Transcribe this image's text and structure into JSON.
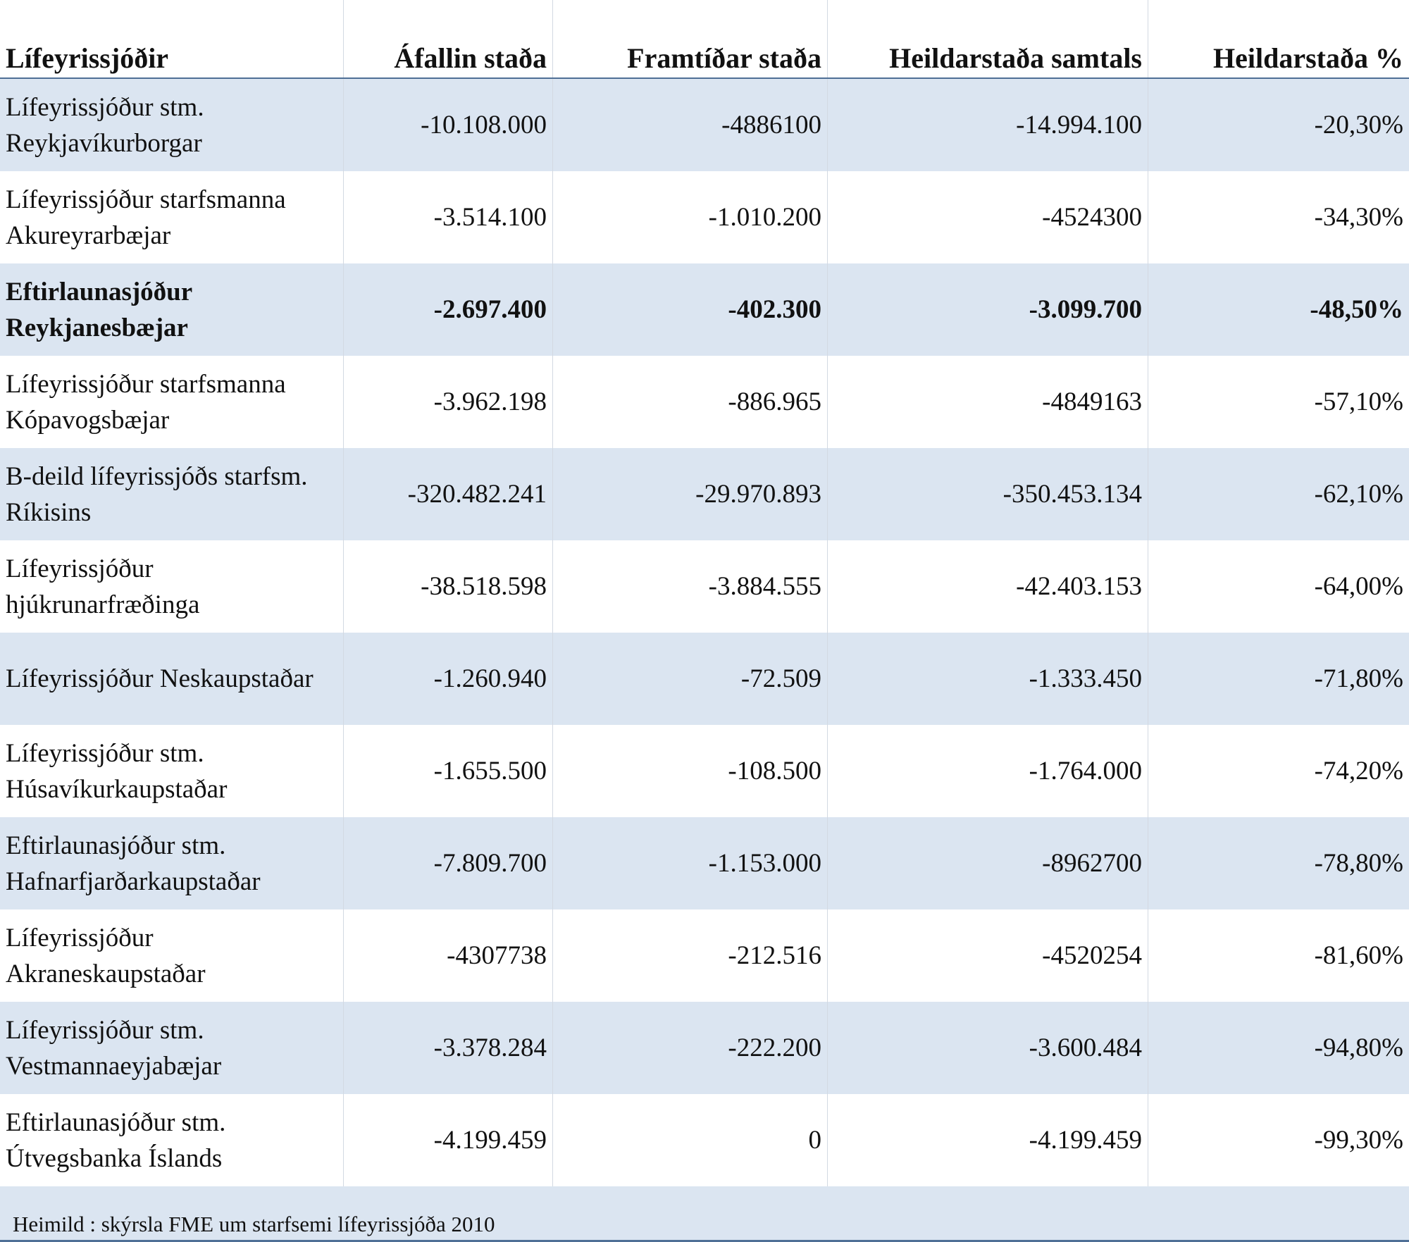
{
  "table": {
    "headers": [
      "Lífeyrissjóðir",
      "Áfallin staða",
      "Framtíðar staða",
      "Heildarstaða samtals",
      "Heildarstaða %"
    ],
    "rows": [
      {
        "name_line1": "Lífeyrissjóður stm.",
        "name_line2": "Reykjavíkurborgar",
        "afallin": "-10.108.000",
        "framtidar": "-4886100",
        "samtals": "-14.994.100",
        "pct": "-20,30%",
        "shaded": true,
        "bold": false
      },
      {
        "name_line1": "Lífeyrissjóður starfsmanna",
        "name_line2": "Akureyrarbæjar",
        "afallin": "-3.514.100",
        "framtidar": "-1.010.200",
        "samtals": "-4524300",
        "pct": "-34,30%",
        "shaded": false,
        "bold": false
      },
      {
        "name_line1": "Eftirlaunasjóður",
        "name_line2": "Reykjanesbæjar",
        "afallin": "-2.697.400",
        "framtidar": "-402.300",
        "samtals": "-3.099.700",
        "pct": "-48,50%",
        "shaded": true,
        "bold": true
      },
      {
        "name_line1": "Lífeyrissjóður starfsmanna",
        "name_line2": "Kópavogsbæjar",
        "afallin": "-3.962.198",
        "framtidar": "-886.965",
        "samtals": "-4849163",
        "pct": "-57,10%",
        "shaded": false,
        "bold": false
      },
      {
        "name_line1": "B-deild lífeyrissjóðs starfsm.",
        "name_line2": "Ríkisins",
        "afallin": "-320.482.241",
        "framtidar": "-29.970.893",
        "samtals": "-350.453.134",
        "pct": "-62,10%",
        "shaded": true,
        "bold": false
      },
      {
        "name_line1": "Lífeyrissjóður",
        "name_line2": "hjúkrunarfræðinga",
        "afallin": "-38.518.598",
        "framtidar": "-3.884.555",
        "samtals": "-42.403.153",
        "pct": "-64,00%",
        "shaded": false,
        "bold": false
      },
      {
        "name_line1": "Lífeyrissjóður Neskaupstaðar",
        "name_line2": "",
        "afallin": "-1.260.940",
        "framtidar": "-72.509",
        "samtals": "-1.333.450",
        "pct": "-71,80%",
        "shaded": true,
        "bold": false
      },
      {
        "name_line1": "Lífeyrissjóður stm.",
        "name_line2": "Húsavíkurkaupstaðar",
        "afallin": "-1.655.500",
        "framtidar": "-108.500",
        "samtals": "-1.764.000",
        "pct": "-74,20%",
        "shaded": false,
        "bold": false
      },
      {
        "name_line1": "Eftirlaunasjóður stm.",
        "name_line2": "Hafnarfjarðarkaupstaðar",
        "afallin": "-7.809.700",
        "framtidar": "-1.153.000",
        "samtals": "-8962700",
        "pct": "-78,80%",
        "shaded": true,
        "bold": false
      },
      {
        "name_line1": "Lífeyrissjóður",
        "name_line2": "Akraneskaupstaðar",
        "afallin": "-4307738",
        "framtidar": "-212.516",
        "samtals": "-4520254",
        "pct": "-81,60%",
        "shaded": false,
        "bold": false
      },
      {
        "name_line1": "Lífeyrissjóður stm.",
        "name_line2": "Vestmannaeyjabæjar",
        "afallin": "-3.378.284",
        "framtidar": "-222.200",
        "samtals": "-3.600.484",
        "pct": "-94,80%",
        "shaded": true,
        "bold": false
      },
      {
        "name_line1": "Eftirlaunasjóður stm.",
        "name_line2": "Útvegsbanka Íslands",
        "afallin": "-4.199.459",
        "framtidar": "0",
        "samtals": "-4.199.459",
        "pct": "-99,30%",
        "shaded": false,
        "bold": false
      }
    ],
    "source_note": "Heimild : skýrsla FME um starfsemi lífeyrissjóða 2010"
  },
  "colors": {
    "shade": "#dbe5f1",
    "rule": "#4f6f96",
    "cell_divider": "#d3d9e2"
  }
}
